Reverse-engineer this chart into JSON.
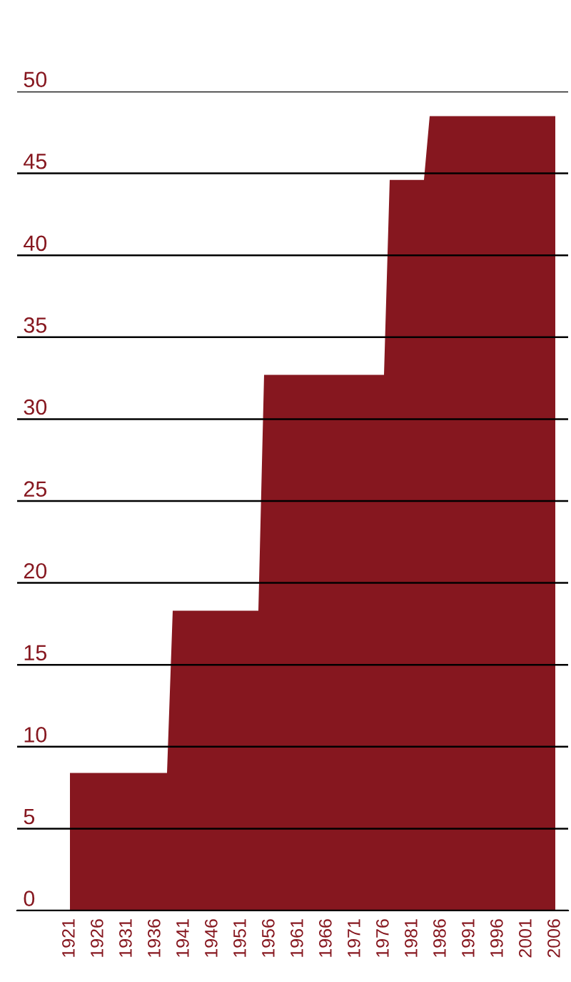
{
  "chart_data": {
    "type": "area",
    "x": [
      1921,
      1938,
      1939,
      1954,
      1955,
      1976,
      1977,
      1983,
      1984,
      2006
    ],
    "series": [
      {
        "color": "#86171f",
        "values": [
          8.4,
          8.4,
          18.3,
          18.3,
          32.7,
          32.7,
          44.6,
          44.6,
          48.5,
          48.5
        ]
      }
    ],
    "xlim": [
      1911.75,
      2008.25
    ],
    "xticks": [
      1921,
      1926,
      1931,
      1936,
      1941,
      1946,
      1951,
      1956,
      1961,
      1966,
      1971,
      1976,
      1981,
      1986,
      1991,
      1996,
      2001,
      2006
    ],
    "ylim": [
      0,
      50
    ],
    "yticks": [
      0,
      5,
      10,
      15,
      20,
      25,
      30,
      35,
      40,
      45,
      50
    ],
    "grid": "y"
  }
}
